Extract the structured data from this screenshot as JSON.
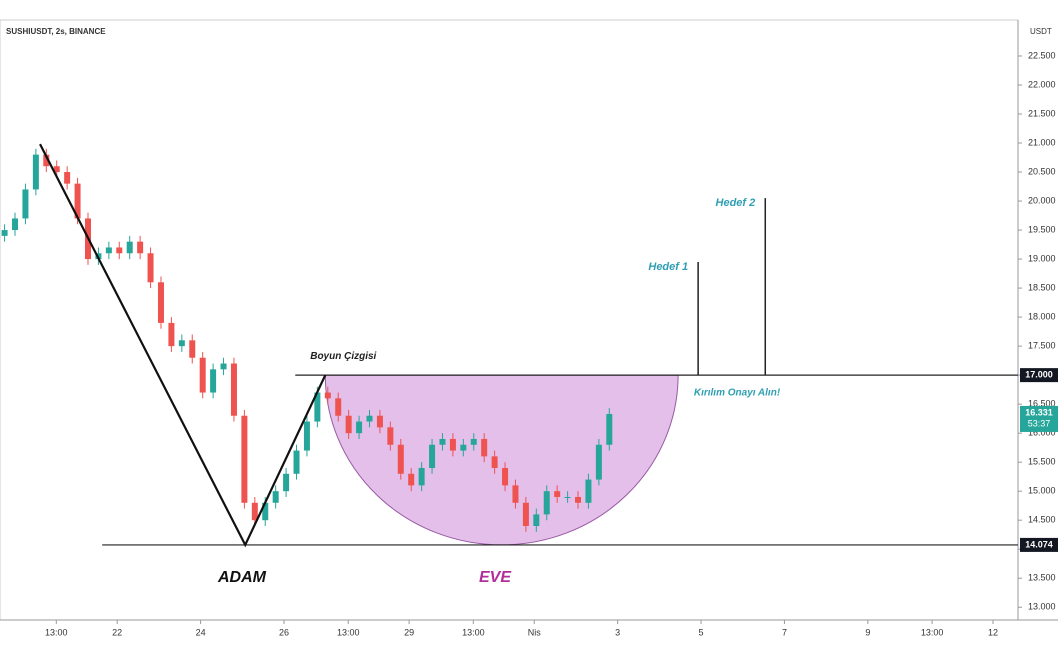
{
  "chart_data": {
    "type": "candlestick",
    "title": "SUSHIUSDT, 2s, BINANCE",
    "y_axis_label": "USDT",
    "up_color": "#26a69a",
    "down_color": "#ef5350",
    "x": [
      19.3,
      19.55,
      19.8,
      20.05,
      20.3,
      20.55,
      20.8,
      21.05,
      21.3,
      21.55,
      21.8,
      22.05,
      22.3,
      22.55,
      22.8,
      23.05,
      23.3,
      23.55,
      23.8,
      24.05,
      24.3,
      24.55,
      24.8,
      25.05,
      25.3,
      25.55,
      25.8,
      26.05,
      26.3,
      26.55,
      26.8,
      27.05,
      27.3,
      27.55,
      27.8,
      28.05,
      28.3,
      28.55,
      28.8,
      29.05,
      29.3,
      29.55,
      29.8,
      30.05,
      30.3,
      30.55,
      30.8,
      31.05,
      31.3,
      31.55,
      31.8,
      32.05,
      32.3,
      32.55,
      32.8,
      33.05,
      33.3,
      33.55,
      33.8
    ],
    "open": [
      19.4,
      19.5,
      19.7,
      20.2,
      20.8,
      20.6,
      20.5,
      20.3,
      19.7,
      19.0,
      19.1,
      19.2,
      19.1,
      19.3,
      19.1,
      18.6,
      17.9,
      17.5,
      17.6,
      17.3,
      16.7,
      17.1,
      17.2,
      16.3,
      14.8,
      14.5,
      14.8,
      15.0,
      15.3,
      15.7,
      16.2,
      16.7,
      16.6,
      16.3,
      16.0,
      16.2,
      16.3,
      16.1,
      15.8,
      15.3,
      15.1,
      15.4,
      15.8,
      15.9,
      15.7,
      15.8,
      15.9,
      15.6,
      15.4,
      15.1,
      14.8,
      14.4,
      14.6,
      15.0,
      14.9,
      14.9,
      14.8,
      15.2,
      15.8
    ],
    "high": [
      19.6,
      19.8,
      20.3,
      20.9,
      20.9,
      20.7,
      20.6,
      20.4,
      19.8,
      19.2,
      19.3,
      19.3,
      19.4,
      19.4,
      19.2,
      18.7,
      18.0,
      17.7,
      17.7,
      17.4,
      17.2,
      17.3,
      17.3,
      16.4,
      14.9,
      14.9,
      15.1,
      15.4,
      15.8,
      16.3,
      16.8,
      16.8,
      16.7,
      16.4,
      16.3,
      16.4,
      16.4,
      16.2,
      15.9,
      15.4,
      15.5,
      15.9,
      16.0,
      16.0,
      15.9,
      16.0,
      16.0,
      15.7,
      15.5,
      15.2,
      14.9,
      14.7,
      15.1,
      15.1,
      15.0,
      15.0,
      15.3,
      15.9,
      16.43
    ],
    "low": [
      19.3,
      19.4,
      19.6,
      20.1,
      20.5,
      20.4,
      20.2,
      19.6,
      18.9,
      18.9,
      19.0,
      19.0,
      19.0,
      19.0,
      18.5,
      17.8,
      17.4,
      17.4,
      17.2,
      16.6,
      16.6,
      17.0,
      16.2,
      14.7,
      14.4,
      14.4,
      14.7,
      14.9,
      15.2,
      15.6,
      16.1,
      16.5,
      16.2,
      15.9,
      15.9,
      16.1,
      16.0,
      15.7,
      15.2,
      15.0,
      15.0,
      15.3,
      15.7,
      15.6,
      15.6,
      15.7,
      15.5,
      15.3,
      15.0,
      14.7,
      14.3,
      14.3,
      14.5,
      14.8,
      14.8,
      14.7,
      14.7,
      15.1,
      15.7
    ],
    "close": [
      19.5,
      19.7,
      20.2,
      20.8,
      20.6,
      20.5,
      20.3,
      19.7,
      19.0,
      19.1,
      19.2,
      19.1,
      19.3,
      19.1,
      18.6,
      17.9,
      17.5,
      17.6,
      17.3,
      16.7,
      17.1,
      17.2,
      16.3,
      14.8,
      14.5,
      14.8,
      15.0,
      15.3,
      15.7,
      16.2,
      16.7,
      16.6,
      16.3,
      16.0,
      16.2,
      16.3,
      16.1,
      15.8,
      15.3,
      15.1,
      15.4,
      15.8,
      15.9,
      15.7,
      15.8,
      15.9,
      15.6,
      15.4,
      15.1,
      14.8,
      14.4,
      14.6,
      15.0,
      14.9,
      14.9,
      14.8,
      15.2,
      15.8,
      16.33
    ],
    "xlim": [
      19.19,
      43.6
    ],
    "ylim": [
      12.78,
      23.12
    ],
    "xticks": [
      {
        "value": 20.54,
        "label": "13:00"
      },
      22,
      24,
      26,
      {
        "value": 27.54,
        "label": "13:00"
      },
      29,
      {
        "value": 30.54,
        "label": "13:00"
      },
      {
        "value": 32,
        "label": "Nis"
      },
      {
        "value": 34,
        "label": "3"
      },
      {
        "value": 36,
        "label": "5"
      },
      {
        "value": 38,
        "label": "7"
      },
      {
        "value": 40,
        "label": "9"
      },
      {
        "value": 41.54,
        "label": "13:00"
      },
      {
        "value": 43,
        "label": "12"
      }
    ],
    "yticks": [
      {
        "value": 13,
        "label": "13.000"
      },
      {
        "value": 13.5,
        "label": "13.500"
      },
      {
        "value": 14,
        "label": "14.000"
      },
      {
        "value": 14.5,
        "label": "14.500"
      },
      {
        "value": 15,
        "label": "15.000"
      },
      {
        "value": 15.5,
        "label": "15.500"
      },
      {
        "value": 16,
        "label": "16.000"
      },
      {
        "value": 16.5,
        "label": "16.500"
      },
      {
        "value": 17,
        "label": "17.000"
      },
      {
        "value": 17.5,
        "label": "17.500"
      },
      {
        "value": 18,
        "label": "18.000"
      },
      {
        "value": 18.5,
        "label": "18.500"
      },
      {
        "value": 19,
        "label": "19.000"
      },
      {
        "value": 19.5,
        "label": "19.500"
      },
      {
        "value": 20,
        "label": "20.000"
      },
      {
        "value": 20.5,
        "label": "20.500"
      },
      {
        "value": 21,
        "label": "21.000"
      },
      {
        "value": 21.5,
        "label": "21.500"
      },
      {
        "value": 22,
        "label": "22.000"
      },
      {
        "value": 22.5,
        "label": "22.500"
      }
    ],
    "trend_line": {
      "x": [
        20.15,
        25.07,
        26.99
      ],
      "y": [
        20.98,
        14.074,
        17.0
      ]
    },
    "neckline": {
      "label": "Boyun Çizgisi",
      "x_start": 26.27,
      "price": 17.0,
      "price_label": "17.000"
    },
    "support": {
      "x_start": 21.64,
      "price": 14.074,
      "price_label": "14.074"
    },
    "cup": {
      "x_start": 26.99,
      "x_end": 35.45,
      "top": 17.0,
      "bottom": 14.074,
      "color": "#d9a9e2"
    },
    "targets": [
      {
        "label": "Hedef 1",
        "x": 35.93,
        "from": 17.0,
        "to": 18.95
      },
      {
        "label": "Hedef 2",
        "x": 37.54,
        "from": 17.0,
        "to": 20.05
      }
    ],
    "breakout_note": "Kırılım Onayı Alın!",
    "head_label": "ADAM",
    "cup_label": "EVE",
    "last_price": {
      "price": 16.331,
      "label": "16.331",
      "countdown": "53:37",
      "color": "#26a69a"
    }
  }
}
